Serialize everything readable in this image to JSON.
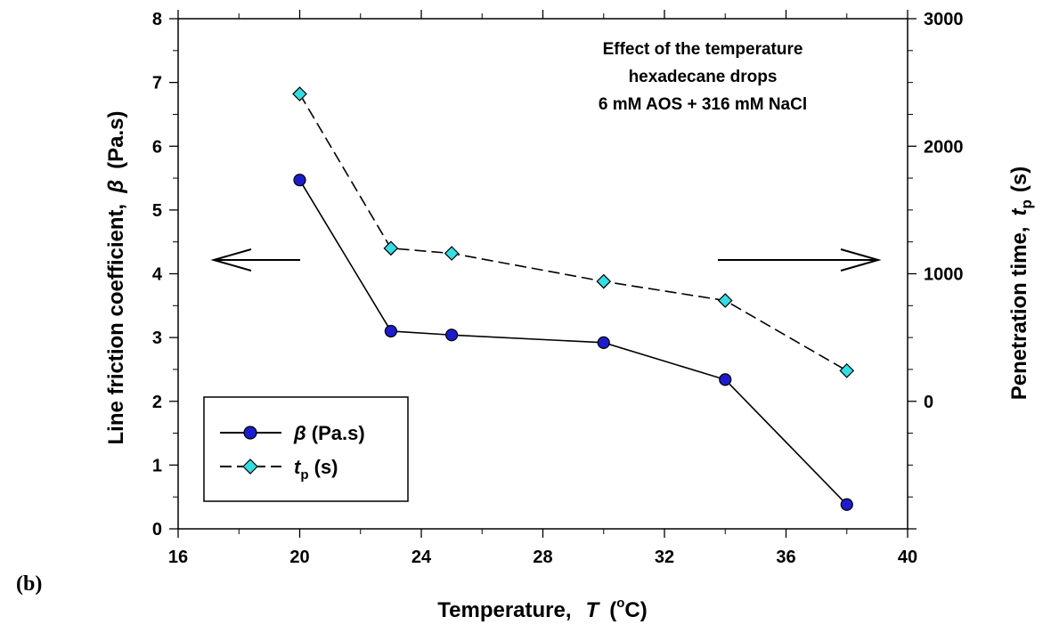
{
  "panel_label": "(b)",
  "chart_data": {
    "type": "line",
    "annotation": [
      "Effect of the temperature",
      "hexadecane drops",
      "6 mM AOS + 316 mM NaCl"
    ],
    "x_axis": {
      "label_main": "Temperature,",
      "label_sym": "T",
      "label_unit_open": "(",
      "label_unit_sup": "o",
      "label_unit_close": "C)",
      "range": [
        16,
        40
      ],
      "ticks": [
        16,
        20,
        24,
        28,
        32,
        36,
        40
      ],
      "tick_labels": [
        "16",
        "20",
        "24",
        "28",
        "32",
        "36",
        "40"
      ],
      "minor_step": 2
    },
    "y_left": {
      "label_main": "Line friction coefficient,",
      "label_sym": "β",
      "label_unit": "(Pa.s)",
      "range": [
        0,
        8
      ],
      "ticks": [
        0,
        1,
        2,
        3,
        4,
        5,
        6,
        7,
        8
      ],
      "tick_labels": [
        "0",
        "1",
        "2",
        "3",
        "4",
        "5",
        "6",
        "7",
        "8"
      ],
      "minor_step": 0.5
    },
    "y_right": {
      "label_main": "Penetration time,",
      "label_sym": "t",
      "label_sub": "p",
      "label_unit": "(s)",
      "range": [
        -1000,
        3000
      ],
      "ticks": [
        0,
        1000,
        2000,
        3000
      ],
      "tick_labels": [
        "0",
        "1000",
        "2000",
        "3000"
      ],
      "minor_step": 250
    },
    "series": [
      {
        "name_sym": "β",
        "name_rest": " (Pa.s)",
        "axis": "left",
        "marker": "circle",
        "line": "solid",
        "color": "#1c1ccc",
        "x": [
          20,
          23,
          25,
          30,
          34,
          38
        ],
        "values": [
          5.47,
          3.1,
          3.04,
          2.92,
          2.34,
          0.38
        ]
      },
      {
        "name_sym": "t",
        "name_sub": "p",
        "name_rest": " (s)",
        "axis": "right",
        "marker": "diamond",
        "line": "dashed",
        "color": "#33dde3",
        "x": [
          20,
          23,
          25,
          30,
          34,
          38
        ],
        "values": [
          2410,
          1200,
          1160,
          940,
          790,
          240
        ]
      }
    ],
    "grid": false,
    "legend_position": "bottom-left"
  }
}
